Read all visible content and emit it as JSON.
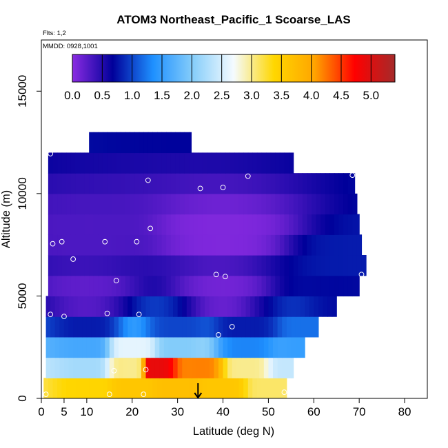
{
  "chart_data": {
    "type": "heatmap",
    "title": "ATOM3 Northeast_Pacific_1 Scoarse_LAS",
    "subtitle": "Flts: 1,2",
    "annotation": "MMDD: 0928,1001",
    "xlabel": "Latitude (deg N)",
    "ylabel": "Altitude (m)",
    "xlim": [
      0,
      85
    ],
    "ylim": [
      0,
      17500
    ],
    "x_ticks": [
      0,
      5,
      10,
      20,
      30,
      40,
      50,
      60,
      70,
      80
    ],
    "y_ticks": [
      0,
      5000,
      10000,
      15000
    ],
    "colorbar": {
      "range": [
        0,
        5.4
      ],
      "tick_values": [
        0.0,
        0.5,
        1.0,
        1.5,
        2.0,
        2.5,
        3.0,
        3.5,
        4.0,
        4.5,
        5.0
      ],
      "tick_labels": [
        "0.0",
        "0.5",
        "1.0",
        "1.5",
        "2.0",
        "2.5",
        "3.0",
        "3.5",
        "4.0",
        "4.5",
        "5.0"
      ],
      "colors": [
        "#8a2be2",
        "#00009a",
        "#1e90ff",
        "#87cefa",
        "#f5fbff",
        "#ffd700",
        "#ffa500",
        "#ff0000",
        "#a52a2a"
      ]
    },
    "arrow_latitude": 34.5,
    "altitude_bins": [
      {
        "alt": 500,
        "x0": 0.5,
        "x1": 54
      },
      {
        "alt": 1500,
        "x0": 1,
        "x1": 55.5
      },
      {
        "alt": 2500,
        "x0": 1,
        "x1": 58
      },
      {
        "alt": 3500,
        "x0": 1,
        "x1": 61
      },
      {
        "alt": 4500,
        "x0": 1,
        "x1": 65
      },
      {
        "alt": 5500,
        "x0": 1.5,
        "x1": 70
      },
      {
        "alt": 6500,
        "x0": 1.5,
        "x1": 71.5
      },
      {
        "alt": 7500,
        "x0": 1.5,
        "x1": 70.5
      },
      {
        "alt": 8500,
        "x0": 1.5,
        "x1": 70
      },
      {
        "alt": 9500,
        "x0": 1.5,
        "x1": 69.5
      },
      {
        "alt": 10500,
        "x0": 1.5,
        "x1": 69
      },
      {
        "alt": 11500,
        "x0": 1.5,
        "x1": 55.5
      },
      {
        "alt": 12500,
        "x0": 10.5,
        "x1": 33
      }
    ],
    "field_points": [
      {
        "lat": 10,
        "alt": 500,
        "value": 3.4
      },
      {
        "lat": 20,
        "alt": 500,
        "value": 3.6
      },
      {
        "lat": 30,
        "alt": 500,
        "value": 3.7
      },
      {
        "lat": 40,
        "alt": 500,
        "value": 3.6
      },
      {
        "lat": 50,
        "alt": 500,
        "value": 3.1
      },
      {
        "lat": 10,
        "alt": 1500,
        "value": 2.2
      },
      {
        "lat": 20,
        "alt": 1500,
        "value": 3.0
      },
      {
        "lat": 25,
        "alt": 1500,
        "value": 4.9
      },
      {
        "lat": 35,
        "alt": 1500,
        "value": 4.2
      },
      {
        "lat": 45,
        "alt": 1500,
        "value": 3.0
      },
      {
        "lat": 55,
        "alt": 1500,
        "value": 2.4
      },
      {
        "lat": 10,
        "alt": 2500,
        "value": 1.6
      },
      {
        "lat": 20,
        "alt": 2500,
        "value": 2.6
      },
      {
        "lat": 30,
        "alt": 2500,
        "value": 2.0
      },
      {
        "lat": 45,
        "alt": 2500,
        "value": 1.3
      },
      {
        "lat": 58,
        "alt": 2500,
        "value": 1.5
      },
      {
        "lat": 10,
        "alt": 3500,
        "value": 0.8
      },
      {
        "lat": 30,
        "alt": 3500,
        "value": 1.0
      },
      {
        "lat": 45,
        "alt": 3500,
        "value": 0.8
      },
      {
        "lat": 60,
        "alt": 3500,
        "value": 1.2
      },
      {
        "lat": 10,
        "alt": 5000,
        "value": 0.2
      },
      {
        "lat": 40,
        "alt": 5000,
        "value": 0.1
      },
      {
        "lat": 65,
        "alt": 5000,
        "value": 0.7
      },
      {
        "lat": 10,
        "alt": 8000,
        "value": 0.3
      },
      {
        "lat": 40,
        "alt": 8000,
        "value": 0.05
      },
      {
        "lat": 70,
        "alt": 7000,
        "value": 0.8
      }
    ],
    "sample_points": [
      {
        "lat": 1,
        "alt": 200
      },
      {
        "lat": 15,
        "alt": 200
      },
      {
        "lat": 22.5,
        "alt": 200
      },
      {
        "lat": 53.5,
        "alt": 300
      },
      {
        "lat": 16,
        "alt": 1350
      },
      {
        "lat": 23,
        "alt": 1400
      },
      {
        "lat": 39,
        "alt": 3100
      },
      {
        "lat": 42,
        "alt": 3500
      },
      {
        "lat": 2,
        "alt": 4100
      },
      {
        "lat": 5,
        "alt": 4000
      },
      {
        "lat": 14.5,
        "alt": 4150
      },
      {
        "lat": 21.5,
        "alt": 4100
      },
      {
        "lat": 16.5,
        "alt": 5750
      },
      {
        "lat": 38.5,
        "alt": 6050
      },
      {
        "lat": 40.5,
        "alt": 5950
      },
      {
        "lat": 70.5,
        "alt": 6050
      },
      {
        "lat": 2.5,
        "alt": 7550
      },
      {
        "lat": 4.5,
        "alt": 7650
      },
      {
        "lat": 7,
        "alt": 6800
      },
      {
        "lat": 14,
        "alt": 7650
      },
      {
        "lat": 21,
        "alt": 7650
      },
      {
        "lat": 24,
        "alt": 8300
      },
      {
        "lat": 23.5,
        "alt": 10650
      },
      {
        "lat": 35,
        "alt": 10250
      },
      {
        "lat": 40,
        "alt": 10300
      },
      {
        "lat": 45.5,
        "alt": 10850
      },
      {
        "lat": 58.5,
        "alt": 11200
      },
      {
        "lat": 68.5,
        "alt": 10900
      },
      {
        "lat": 2,
        "alt": 11950
      }
    ]
  }
}
